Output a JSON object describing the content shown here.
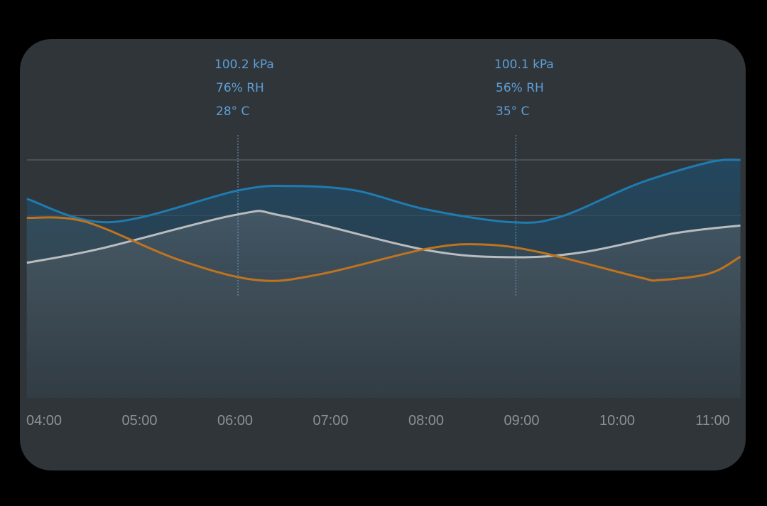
{
  "chart_data": {
    "type": "area",
    "title": "",
    "xlabel": "",
    "ylabel": "",
    "x_ticks": [
      "04:00",
      "05:00",
      "06:00",
      "07:00",
      "08:00",
      "09:00",
      "10:00",
      "11:00"
    ],
    "xlim_hours": [
      3.82,
      11.29
    ],
    "ylim": [
      0,
      4
    ],
    "y_gridlines": [
      0,
      1,
      2,
      3,
      4
    ],
    "grid": true,
    "series": [
      {
        "color": "#1f7bb0",
        "fill": "#25465a",
        "x": [
          3.82,
          4.69,
          6.03,
          6.59,
          7.26,
          8.0,
          8.89,
          9.41,
          10.23,
          10.97,
          11.29
        ],
        "y": [
          3.3,
          2.88,
          3.45,
          3.53,
          3.45,
          3.11,
          2.88,
          2.98,
          3.58,
          3.96,
          4.0
        ]
      },
      {
        "color": "#b9bdbf",
        "fill": "#4a5660",
        "x": [
          3.82,
          4.58,
          6.03,
          6.51,
          8.0,
          8.89,
          9.64,
          10.6,
          11.29
        ],
        "y": [
          2.15,
          2.4,
          3.02,
          2.99,
          2.38,
          2.25,
          2.34,
          2.68,
          2.82
        ]
      },
      {
        "color": "#c0731f",
        "fill": "#4d4b45",
        "x": [
          3.82,
          4.43,
          5.4,
          6.22,
          6.88,
          8.0,
          8.59,
          9.19,
          10.23,
          10.45,
          10.97,
          11.29
        ],
        "y": [
          2.96,
          2.89,
          2.21,
          1.84,
          1.94,
          2.4,
          2.48,
          2.34,
          1.89,
          1.84,
          1.96,
          2.26
        ]
      }
    ],
    "annotations": [
      {
        "x": 6.03,
        "lines": [
          "100.2 kPa",
          "76% RH",
          "28° C"
        ]
      },
      {
        "x": 8.94,
        "lines": [
          "100.1 kPa",
          "56% RH",
          "35° C"
        ]
      }
    ]
  }
}
